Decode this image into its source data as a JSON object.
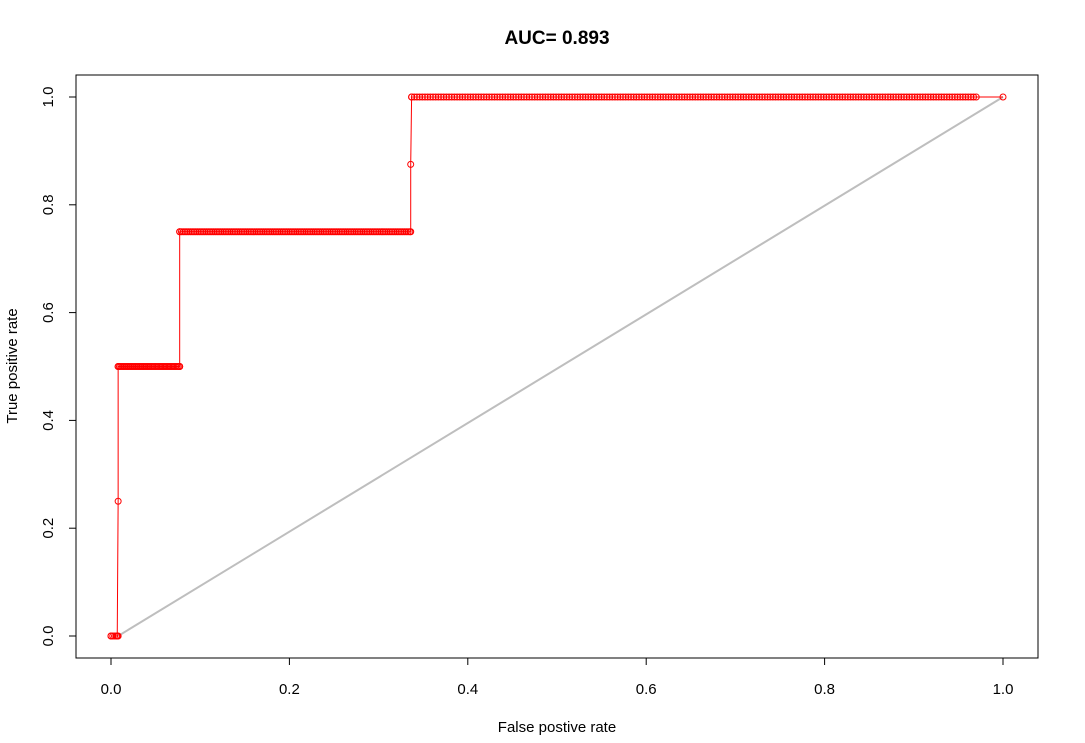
{
  "chart_data": {
    "type": "line",
    "title": "AUC= 0.893",
    "xlabel": "False postive rate",
    "ylabel": "True positive rate",
    "xlim": [
      0,
      1
    ],
    "ylim": [
      0,
      1
    ],
    "x_ticks": [
      "0.0",
      "0.2",
      "0.4",
      "0.6",
      "0.8",
      "1.0"
    ],
    "y_ticks": [
      "0.0",
      "0.2",
      "0.4",
      "0.6",
      "0.8",
      "1.0"
    ],
    "grid": false,
    "series": [
      {
        "color": "#ff0000",
        "style": "line-with-markers",
        "points": [
          [
            0.0,
            0.0
          ],
          [
            0.007,
            0.0
          ],
          [
            0.008,
            0.25
          ],
          [
            0.008,
            0.5
          ],
          [
            0.077,
            0.5
          ],
          [
            0.077,
            0.75
          ],
          [
            0.336,
            0.75
          ],
          [
            0.336,
            0.875
          ],
          [
            0.337,
            1.0
          ],
          [
            1.0,
            1.0
          ]
        ],
        "dense_marker_segments": [
          {
            "y": 0.0,
            "x_from": 0.0,
            "x_to": 0.008,
            "step": 0.002
          },
          {
            "y": 0.5,
            "x_from": 0.008,
            "x_to": 0.077,
            "step": 0.0015
          },
          {
            "y": 0.75,
            "x_from": 0.077,
            "x_to": 0.336,
            "step": 0.002
          },
          {
            "y": 1.0,
            "x_from": 0.337,
            "x_to": 0.97,
            "step": 0.003
          }
        ]
      },
      {
        "color": "#bebebe",
        "style": "line",
        "points": [
          [
            0.008,
            0.0
          ],
          [
            1.0,
            1.0
          ]
        ]
      }
    ]
  }
}
